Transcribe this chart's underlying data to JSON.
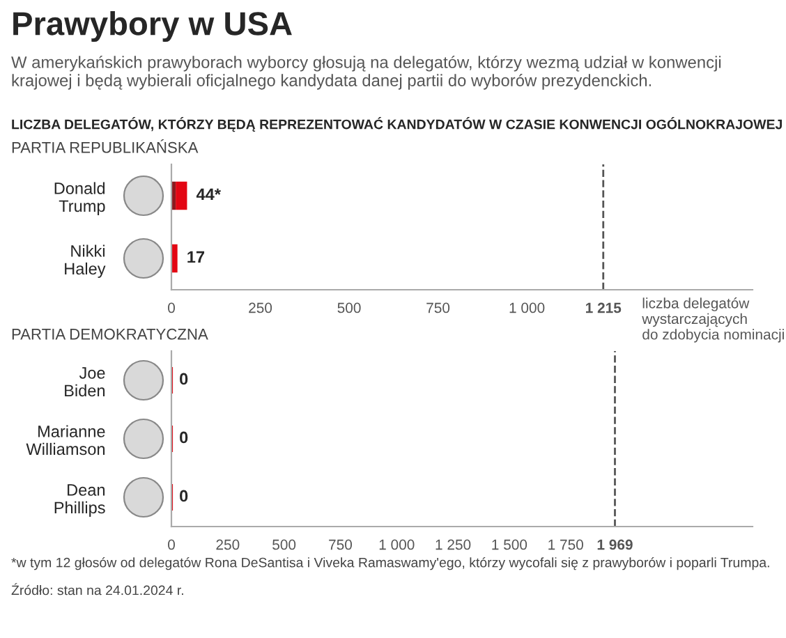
{
  "chart_data": [
    {
      "type": "other",
      "title": "Prawybory w USA",
      "subtitle": "W amerykańskich prawyborach wyborcy głosują na delegatów, którzy wezmą udział w konwencji krajowej i będą wybierali oficjalnego kandydata danej partii do wyborów prezydenckich.",
      "annotations": [
        "LICZBA DELEGATÓW, KTÓRZY BĘDĄ REPREZENTOWAĆ KANDYDATÓW W CZASIE KONWENCJI OGÓLNOKRAJOWEJ"
      ]
    },
    {
      "type": "bar",
      "orientation": "horizontal",
      "stacked": true,
      "title": "PARTIA REPUBLIKAŃSKA",
      "categories": [
        "Donald\nTrump",
        "Nikki\nHaley"
      ],
      "series": [
        {
          "color": "#8c1a1f",
          "values": [
            12,
            0
          ]
        },
        {
          "color": "#e30613",
          "values": [
            32,
            17
          ]
        }
      ],
      "totals": [
        "44*",
        "17"
      ],
      "xlim": [
        0,
        1635
      ],
      "xticks": [
        0,
        250,
        500,
        750,
        {
          "value": 1000,
          "label": "1 000"
        },
        {
          "value": 1215,
          "label": "1 215"
        }
      ],
      "ref_lines": [
        {
          "axis": "x",
          "value": 1215,
          "label": "liczba delegatów\nwystarczających\ndo zdobycia nominacji",
          "color": "#555555",
          "line_style": "dashed"
        }
      ]
    },
    {
      "type": "bar",
      "orientation": "horizontal",
      "title": "PARTIA DEMOKRATYCZNA",
      "categories": [
        "Joe\nBiden",
        "Marianne\nWilliamson",
        "Dean\nPhillips"
      ],
      "values": [
        0,
        0,
        0
      ],
      "color": "#e30613",
      "data_labels": true,
      "xlim": [
        0,
        2580
      ],
      "xticks": [
        0,
        250,
        500,
        750,
        {
          "value": 1000,
          "label": "1 000"
        },
        {
          "value": 1250,
          "label": "1 250"
        },
        {
          "value": 1500,
          "label": "1 500"
        },
        {
          "value": 1750,
          "label": "1 750"
        },
        {
          "value": 1969,
          "label": "1 969"
        }
      ],
      "ref_lines": [
        {
          "axis": "x",
          "value": 1969,
          "color": "#555555",
          "line_style": "dashed"
        }
      ],
      "annotations": [
        "*w tym 12 głosów od delegatów Rona DeSantisa i Viveka Ramaswamy'ego, którzy wycofali się z prawyborów i poparli Trumpa.",
        "Źródło: stan na 24.01.2024 r."
      ]
    }
  ]
}
